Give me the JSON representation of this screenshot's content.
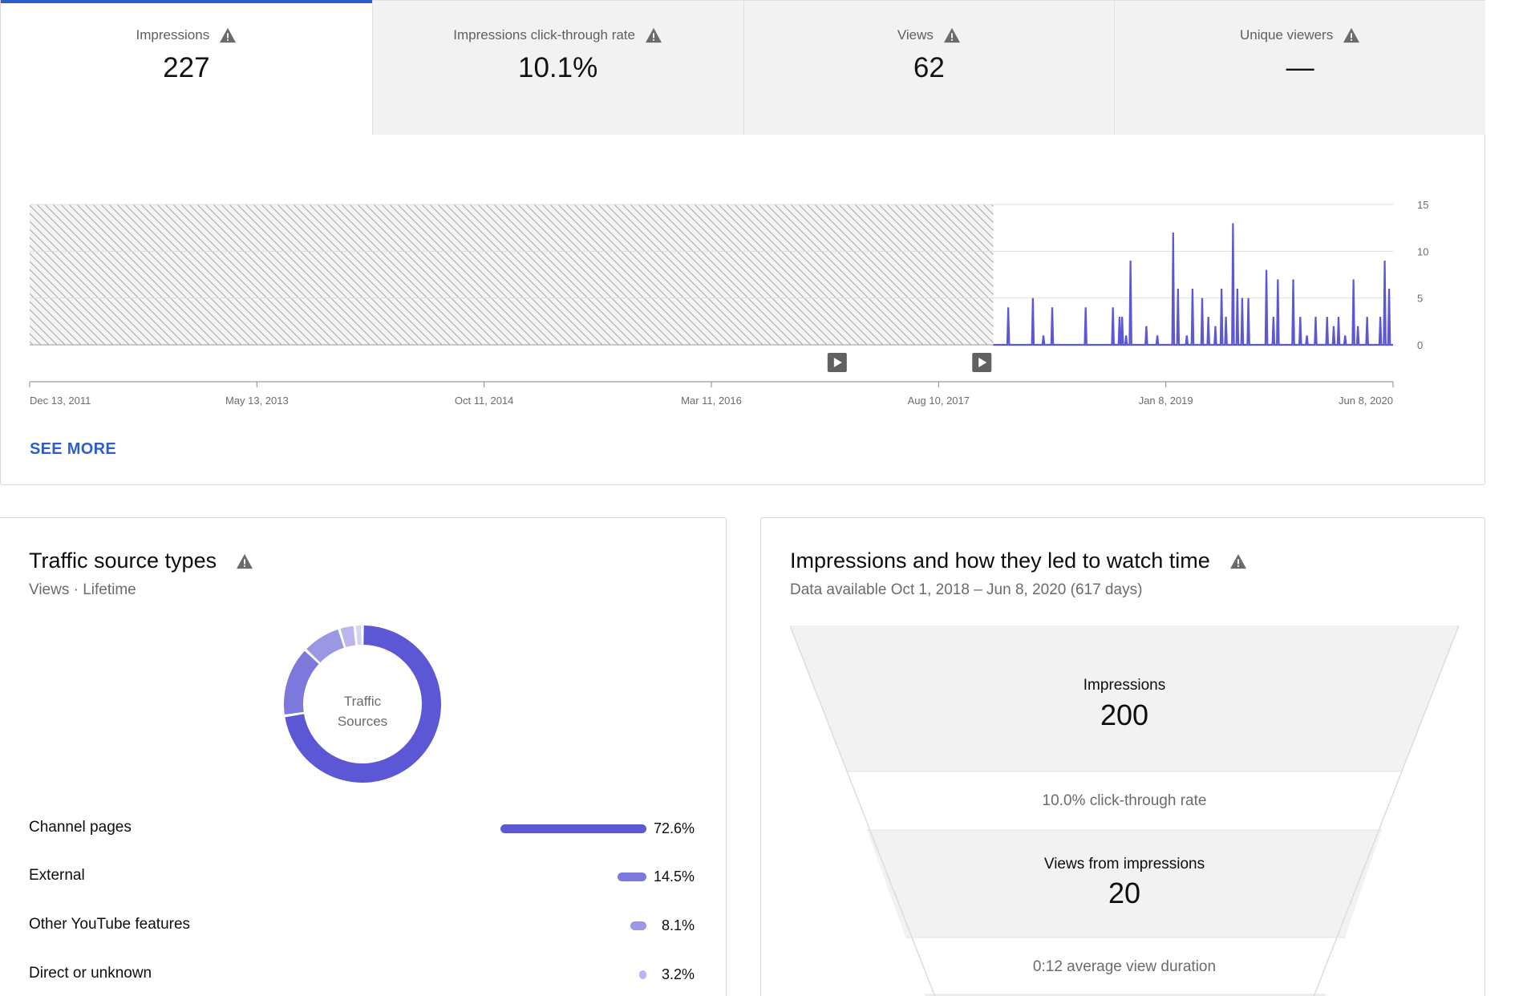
{
  "tabs": [
    {
      "label": "Impressions",
      "value": "227",
      "active": true
    },
    {
      "label": "Impressions click-through rate",
      "value": "10.1%",
      "active": false
    },
    {
      "label": "Views",
      "value": "62",
      "active": false
    },
    {
      "label": "Unique viewers",
      "value": "—",
      "active": false
    }
  ],
  "chart_data": {
    "type": "line",
    "y_ticks": [
      "15",
      "10",
      "5",
      "0"
    ],
    "ylim": [
      0,
      15
    ],
    "x_ticks": [
      "Dec 13, 2011",
      "May 13, 2013",
      "Oct 11, 2014",
      "Mar 11, 2016",
      "Aug 10, 2017",
      "Jan 8, 2019",
      "Jun 8, 2020"
    ],
    "xlim": [
      "2011-12-13",
      "2020-06-08"
    ],
    "no_data_until": "2017-12-12",
    "markers": [
      "2016-12-22",
      "2017-11-16"
    ],
    "grid": true,
    "series": [
      {
        "color": "#5c57d4",
        "points": [
          [
            "2018-01-15",
            4
          ],
          [
            "2018-03-12",
            5
          ],
          [
            "2018-04-05",
            1
          ],
          [
            "2018-04-25",
            4
          ],
          [
            "2018-07-10",
            4
          ],
          [
            "2018-09-10",
            4
          ],
          [
            "2018-09-25",
            3
          ],
          [
            "2018-10-01",
            3
          ],
          [
            "2018-10-10",
            1
          ],
          [
            "2018-10-20",
            9
          ],
          [
            "2018-11-25",
            2
          ],
          [
            "2018-12-20",
            1
          ],
          [
            "2019-01-25",
            12
          ],
          [
            "2019-02-05",
            6
          ],
          [
            "2019-02-25",
            1
          ],
          [
            "2019-03-10",
            6
          ],
          [
            "2019-04-01",
            5
          ],
          [
            "2019-04-15",
            3
          ],
          [
            "2019-05-01",
            2
          ],
          [
            "2019-05-15",
            6
          ],
          [
            "2019-05-25",
            3
          ],
          [
            "2019-06-10",
            13
          ],
          [
            "2019-06-20",
            6
          ],
          [
            "2019-07-01",
            5
          ],
          [
            "2019-07-15",
            5
          ],
          [
            "2019-08-25",
            8
          ],
          [
            "2019-09-10",
            3
          ],
          [
            "2019-09-20",
            7
          ],
          [
            "2019-10-25",
            7
          ],
          [
            "2019-11-10",
            3
          ],
          [
            "2019-11-25",
            1
          ],
          [
            "2019-12-15",
            3
          ],
          [
            "2020-01-10",
            3
          ],
          [
            "2020-01-25",
            2
          ],
          [
            "2020-02-05",
            3
          ],
          [
            "2020-02-20",
            1
          ],
          [
            "2020-03-10",
            7
          ],
          [
            "2020-03-20",
            2
          ],
          [
            "2020-04-10",
            3
          ],
          [
            "2020-05-10",
            3
          ],
          [
            "2020-05-20",
            9
          ],
          [
            "2020-05-30",
            6
          ]
        ]
      }
    ]
  },
  "see_more": "SEE MORE",
  "traffic": {
    "title": "Traffic source types",
    "subtitle": "Views · Lifetime",
    "donut_label_line1": "Traffic",
    "donut_label_line2": "Sources",
    "sources": [
      {
        "name": "Channel pages",
        "percent": 72.6,
        "label": "72.6%",
        "color": "#5c57d4"
      },
      {
        "name": "External",
        "percent": 14.5,
        "label": "14.5%",
        "color": "#7d79dc"
      },
      {
        "name": "Other YouTube features",
        "percent": 8.1,
        "label": "8.1%",
        "color": "#9a97e4"
      },
      {
        "name": "Direct or unknown",
        "percent": 3.2,
        "label": "3.2%",
        "color": "#b8b6ec"
      },
      {
        "name": "",
        "percent": 1.6,
        "label": "",
        "color": "#d4d3f3"
      }
    ]
  },
  "funnel": {
    "title": "Impressions and how they led to watch time",
    "subtitle": "Data available Oct 1, 2018 – Jun 8, 2020 (617 days)",
    "impressions_label": "Impressions",
    "impressions_value": "200",
    "ctr_text": "10.0% click-through rate",
    "views_label": "Views from impressions",
    "views_value": "20",
    "avd_text": "0:12 average view duration"
  }
}
